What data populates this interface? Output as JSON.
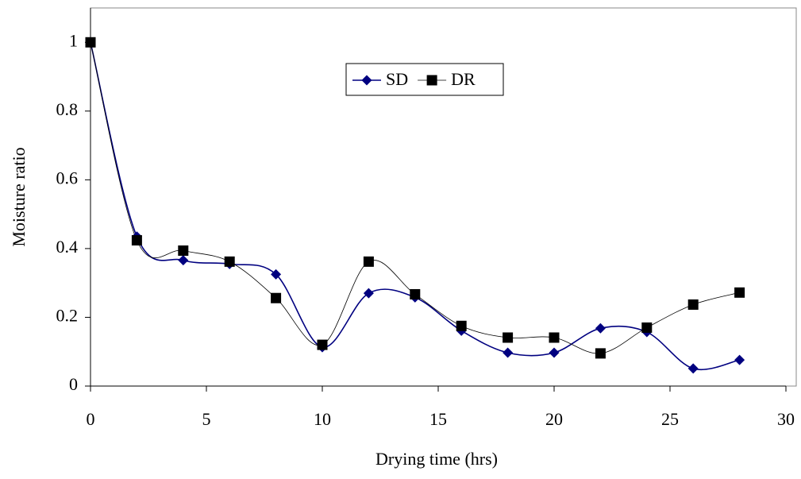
{
  "chart_data": {
    "type": "line",
    "x_label": "Drying time (hrs)",
    "y_label": "Moisture ratio",
    "x": [
      0,
      2,
      4,
      6,
      8,
      10,
      12,
      14,
      16,
      18,
      20,
      22,
      24,
      26,
      28
    ],
    "series": [
      {
        "name": "SD",
        "color": "#000080",
        "marker": "diamond",
        "line_width": 1.6,
        "values": [
          1,
          0.435,
          0.366,
          0.355,
          0.325,
          0.113,
          0.27,
          0.258,
          0.161,
          0.097,
          0.097,
          0.168,
          0.157,
          0.051,
          0.076
        ]
      },
      {
        "name": "DR",
        "color": "#000000",
        "marker": "square",
        "line_width": 0.8,
        "values": [
          1,
          0.424,
          0.394,
          0.362,
          0.256,
          0.12,
          0.362,
          0.267,
          0.175,
          0.141,
          0.141,
          0.095,
          0.17,
          0.237,
          0.272
        ]
      }
    ],
    "xlim": [
      0,
      30
    ],
    "xticks": [
      0,
      5,
      10,
      15,
      20,
      25,
      30
    ],
    "ylim": [
      0,
      1.1
    ],
    "yticks": [
      0,
      0.2,
      0.4,
      0.6,
      0.8,
      1
    ],
    "grid": false,
    "smooth": true,
    "legend": "top"
  }
}
